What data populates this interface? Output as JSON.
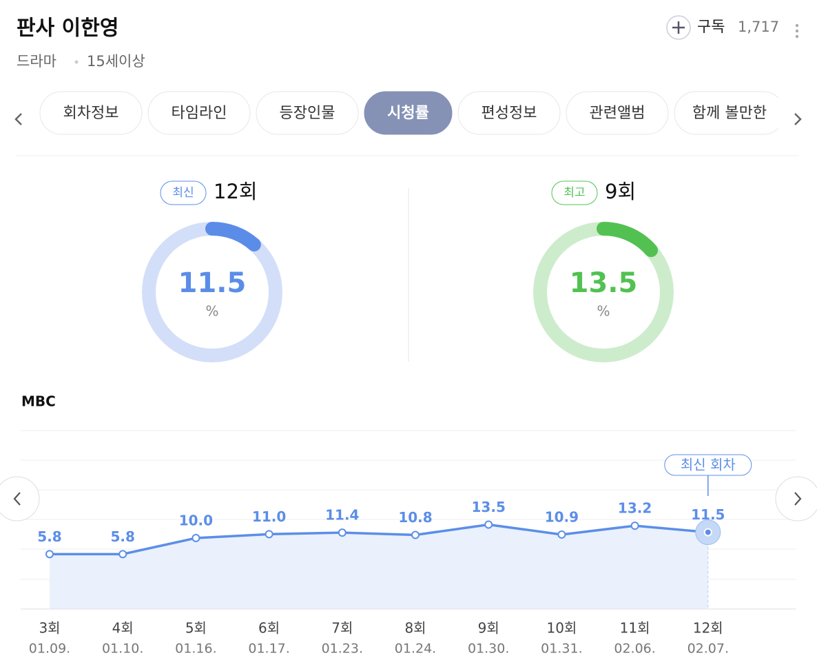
{
  "header": {
    "title": "판사 이한영",
    "subscribe": "구독",
    "subscribers": "1,717",
    "genre": "드라마",
    "rating": "15세이상"
  },
  "tabs": [
    {
      "label": "회차정보",
      "active": false
    },
    {
      "label": "타임라인",
      "active": false
    },
    {
      "label": "등장인물",
      "active": false
    },
    {
      "label": "시청률",
      "active": true
    },
    {
      "label": "편성정보",
      "active": false
    },
    {
      "label": "관련앨범",
      "active": false
    },
    {
      "label": "함께 볼만한",
      "active": false
    }
  ],
  "stats": [
    {
      "badge": "최신",
      "episode": "12회",
      "value": 11.5,
      "unit": "%",
      "color": "#5b8de8",
      "track": "#d3dff8"
    },
    {
      "badge": "최고",
      "episode": "9회",
      "value": 13.5,
      "unit": "%",
      "color": "#52c152",
      "track": "#cdeccc"
    }
  ],
  "chart_data": {
    "type": "line",
    "title": "MBC",
    "categories": [
      "3회",
      "4회",
      "5회",
      "6회",
      "7회",
      "8회",
      "9회",
      "10회",
      "11회",
      "12회"
    ],
    "dates": [
      "01.09.",
      "01.10.",
      "01.16.",
      "01.17.",
      "01.23.",
      "01.24.",
      "01.30.",
      "01.31.",
      "02.06.",
      "02.07."
    ],
    "series": [
      {
        "color": "#5b8ee8",
        "values": [
          5.8,
          5.8,
          10.0,
          11.0,
          11.4,
          10.8,
          13.5,
          10.9,
          13.2,
          11.5
        ],
        "value_labels": [
          "5.8",
          "5.8",
          "10.0",
          "11.0",
          "11.4",
          "10.8",
          "13.5",
          "10.9",
          "13.2",
          "11.5"
        ]
      }
    ],
    "ylim": [
      -8.5,
      38
    ],
    "annotation": "최신 회차"
  }
}
